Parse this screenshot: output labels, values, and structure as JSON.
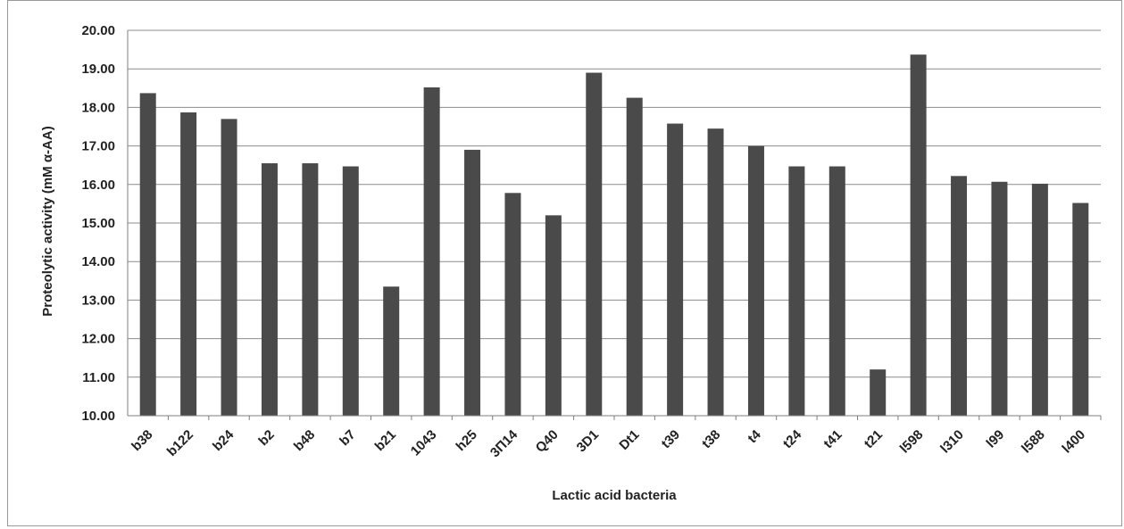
{
  "chart_data": {
    "type": "bar",
    "title": "",
    "xlabel": "Lactic acid bacteria",
    "ylabel": "Proteolytic activity (mM α-AA)",
    "ylim": [
      10.0,
      20.0
    ],
    "yticks": [
      "10.00",
      "11.00",
      "12.00",
      "13.00",
      "14.00",
      "15.00",
      "16.00",
      "17.00",
      "18.00",
      "19.00",
      "20.00"
    ],
    "grid": true,
    "legend": "none",
    "categories": [
      "b38",
      "b122",
      "b24",
      "b2",
      "b48",
      "b7",
      "b21",
      "1043",
      "h25",
      "3П14",
      "Q40",
      "3D1",
      "Dt1",
      "t39",
      "t38",
      "t4",
      "t24",
      "t41",
      "t21",
      "l598",
      "l310",
      "l99",
      "l588",
      "l400"
    ],
    "values": [
      18.37,
      17.87,
      17.7,
      16.55,
      16.55,
      16.47,
      13.35,
      18.52,
      16.9,
      15.78,
      15.2,
      18.9,
      18.25,
      17.58,
      17.45,
      17.0,
      16.47,
      16.47,
      11.2,
      19.37,
      16.22,
      16.07,
      16.02,
      15.52
    ],
    "colors": {
      "bar": "#4a4a4a",
      "grid": "#8c8c8c",
      "axis": "#7f7f7f",
      "frame": "#9a9a9a"
    }
  }
}
